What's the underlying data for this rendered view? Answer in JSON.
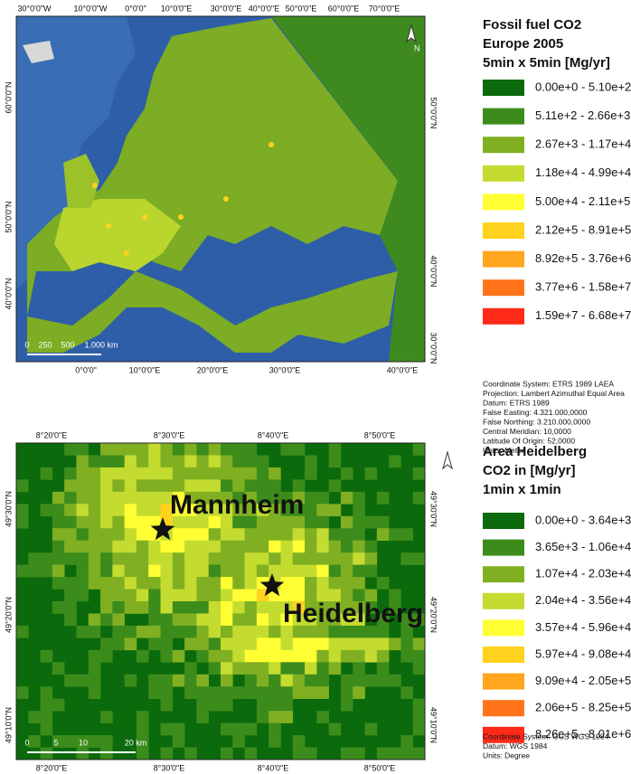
{
  "map1": {
    "title": [
      "Fossil fuel CO2",
      "Europe 2005",
      "5min x 5min [Mg/yr]"
    ],
    "legend": [
      {
        "label": "0.00e+0 - 5.10e+2",
        "color": "#0b6a0b"
      },
      {
        "label": "5.11e+2 - 2.66e+3",
        "color": "#3c8c1c"
      },
      {
        "label": "2.67e+3 - 1.17e+4",
        "color": "#80b022"
      },
      {
        "label": "1.18e+4 - 4.99e+4",
        "color": "#c4dc30"
      },
      {
        "label": "5.00e+4 - 2.11e+5",
        "color": "#ffff33"
      },
      {
        "label": "2.12e+5 - 8.91e+5",
        "color": "#ffd21e"
      },
      {
        "label": "8.92e+5 - 3.76e+6",
        "color": "#ffa51e"
      },
      {
        "label": "3.77e+6 - 1.58e+7",
        "color": "#ff741a"
      },
      {
        "label": "1.59e+7 - 6.68e+7",
        "color": "#ff2a1a"
      }
    ],
    "info": [
      "Coordinate System: ETRS 1989 LAEA",
      "Projection: Lambert Azimuthal Equal Area",
      "Datum: ETRS 1989",
      "False Easting: 4.321.000,0000",
      "False Northing: 3.210.000,0000",
      "Central Meridian: 10,0000",
      "Latitude Of Origin: 52,0000",
      "Units: Meter"
    ],
    "top_labels": [
      "30°0'0\"W",
      "10°0'0\"W",
      "0°0'0\"",
      "10°0'0\"E",
      "30°0'0\"E",
      "40°0'0\"E",
      "50°0'0\"E",
      "60°0'0\"E",
      "70°0'0\"E"
    ],
    "bottom_labels": [
      "0°0'0\"",
      "10°0'0\"E",
      "20°0'0\"E",
      "30°0'0\"E",
      "40°0'0\"E"
    ],
    "left_labels": [
      "60°0'0\"N",
      "50°0'0\"N",
      "40°0'0\"N"
    ],
    "right_labels": [
      "50°0'0\"N",
      "40°0'0\"N",
      "30°0'0\"N"
    ],
    "scale": [
      "0",
      "250",
      "500",
      "1.000 km"
    ],
    "north": "N"
  },
  "map2": {
    "title": [
      "Area Heidelberg",
      "CO2 in [Mg/yr]",
      "1min x 1min"
    ],
    "legend": [
      {
        "label": "0.00e+0 - 3.64e+3",
        "color": "#0b6a0b"
      },
      {
        "label": "3.65e+3 - 1.06e+4",
        "color": "#3c8c1c"
      },
      {
        "label": "1.07e+4 - 2.03e+4",
        "color": "#80b022"
      },
      {
        "label": "2.04e+4 - 3.56e+4",
        "color": "#c4dc30"
      },
      {
        "label": "3.57e+4 - 5.96e+4",
        "color": "#ffff33"
      },
      {
        "label": "5.97e+4 - 9.08e+4",
        "color": "#ffd21e"
      },
      {
        "label": "9.09e+4 - 2.05e+5",
        "color": "#ffa51e"
      },
      {
        "label": "2.06e+5 - 8.25e+5",
        "color": "#ff741a"
      },
      {
        "label": "8.26e+5 - 8.01e+6",
        "color": "#ff2a1a"
      }
    ],
    "info": [
      "Coordinate System: GCS WGS 1984",
      "Datum: WGS 1984",
      "Units: Degree"
    ],
    "top_labels": [
      "8°20'0\"E",
      "8°30'0\"E",
      "8°40'0\"E",
      "8°50'0\"E"
    ],
    "bottom_labels": [
      "8°20'0\"E",
      "8°30'0\"E",
      "8°40'0\"E",
      "8°50'0\"E"
    ],
    "left_labels": [
      "49°30'0\"N",
      "49°20'0\"N",
      "49°10'0\"N"
    ],
    "right_labels": [
      "49°30'0\"N",
      "49°20'0\"N",
      "49°10'0\"N"
    ],
    "scale": [
      "0",
      "5",
      "10",
      "20 km"
    ],
    "cities": [
      "Mannheim",
      "Heidelberg"
    ],
    "north": "N"
  }
}
